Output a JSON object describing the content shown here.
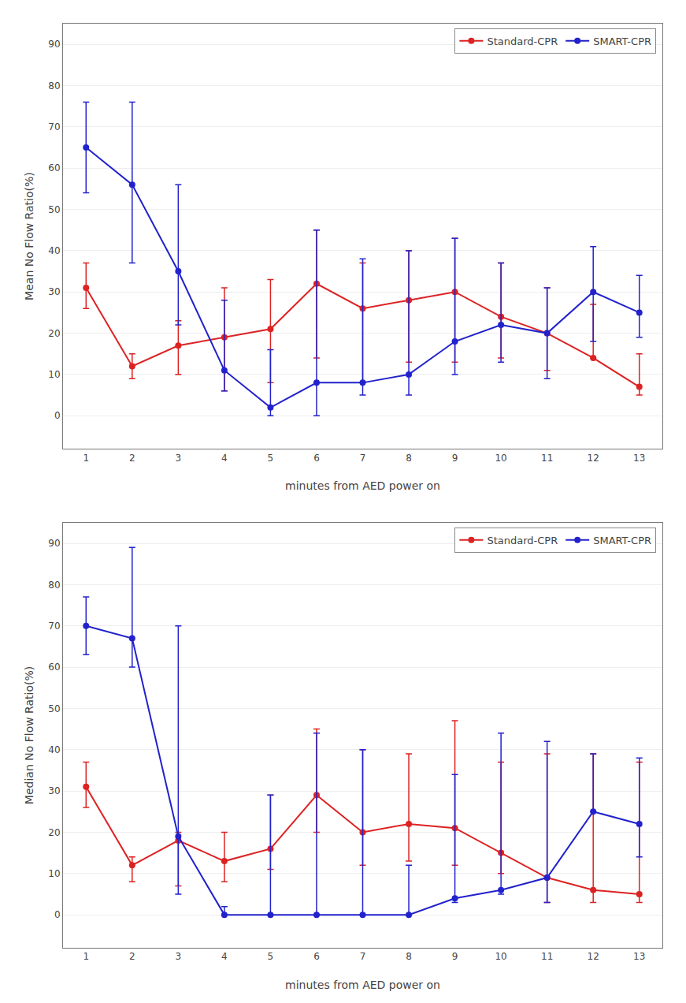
{
  "chart_data": [
    {
      "type": "line",
      "xlabel": "minutes from AED power on",
      "ylabel": "Mean No Flow Ratio(%)",
      "x": [
        1,
        2,
        3,
        4,
        5,
        6,
        7,
        8,
        9,
        10,
        11,
        12,
        13
      ],
      "xlim": [
        0.5,
        13.5
      ],
      "xticks": [
        1,
        2,
        3,
        4,
        5,
        6,
        7,
        8,
        9,
        10,
        11,
        12,
        13
      ],
      "ylim": [
        -8,
        95
      ],
      "yticks": [
        0,
        10,
        20,
        30,
        40,
        50,
        60,
        70,
        80,
        90
      ],
      "grid": "y",
      "legend": "upper right",
      "series": [
        {
          "name": "Standard-CPR",
          "color": "#dd2222",
          "marker": "circle",
          "values": [
            31,
            12,
            17,
            19,
            21,
            32,
            26,
            28,
            30,
            24,
            20,
            14,
            7
          ],
          "error_low": [
            5,
            3,
            7,
            13,
            13,
            18,
            18,
            15,
            17,
            10,
            9,
            0,
            2
          ],
          "error_high": [
            6,
            3,
            6,
            12,
            12,
            13,
            11,
            12,
            13,
            13,
            11,
            13,
            8
          ]
        },
        {
          "name": "SMART-CPR",
          "color": "#2222cc",
          "marker": "circle",
          "values": [
            65,
            56,
            35,
            11,
            2,
            8,
            8,
            10,
            18,
            22,
            20,
            30,
            25
          ],
          "error_low": [
            11,
            19,
            13,
            5,
            2,
            8,
            3,
            5,
            8,
            9,
            11,
            12,
            6
          ],
          "error_high": [
            11,
            20,
            21,
            17,
            14,
            37,
            30,
            30,
            25,
            15,
            11,
            11,
            9
          ]
        }
      ]
    },
    {
      "type": "line",
      "xlabel": "minutes from AED power on",
      "ylabel": "Median No Flow Ratio(%)",
      "x": [
        1,
        2,
        3,
        4,
        5,
        6,
        7,
        8,
        9,
        10,
        11,
        12,
        13
      ],
      "xlim": [
        0.5,
        13.5
      ],
      "xticks": [
        1,
        2,
        3,
        4,
        5,
        6,
        7,
        8,
        9,
        10,
        11,
        12,
        13
      ],
      "ylim": [
        -8,
        95
      ],
      "yticks": [
        0,
        10,
        20,
        30,
        40,
        50,
        60,
        70,
        80,
        90
      ],
      "grid": "y",
      "legend": "upper right",
      "series": [
        {
          "name": "Standard-CPR",
          "color": "#dd2222",
          "marker": "circle",
          "values": [
            31,
            12,
            18,
            13,
            16,
            29,
            20,
            22,
            21,
            15,
            9,
            6,
            5
          ],
          "error_low": [
            5,
            4,
            11,
            5,
            5,
            9,
            8,
            9,
            9,
            5,
            6,
            3,
            2
          ],
          "error_high": [
            6,
            2,
            2,
            7,
            13,
            16,
            20,
            17,
            26,
            22,
            30,
            33,
            32
          ]
        },
        {
          "name": "SMART-CPR",
          "color": "#2222cc",
          "marker": "circle",
          "values": [
            70,
            67,
            19,
            0,
            0,
            0,
            0,
            0,
            4,
            6,
            9,
            25,
            22
          ],
          "error_low": [
            7,
            7,
            14,
            0,
            0,
            0,
            0,
            0,
            1,
            1,
            6,
            0,
            8
          ],
          "error_high": [
            7,
            22,
            51,
            2,
            29,
            44,
            40,
            12,
            30,
            38,
            33,
            14,
            16
          ]
        }
      ]
    }
  ]
}
